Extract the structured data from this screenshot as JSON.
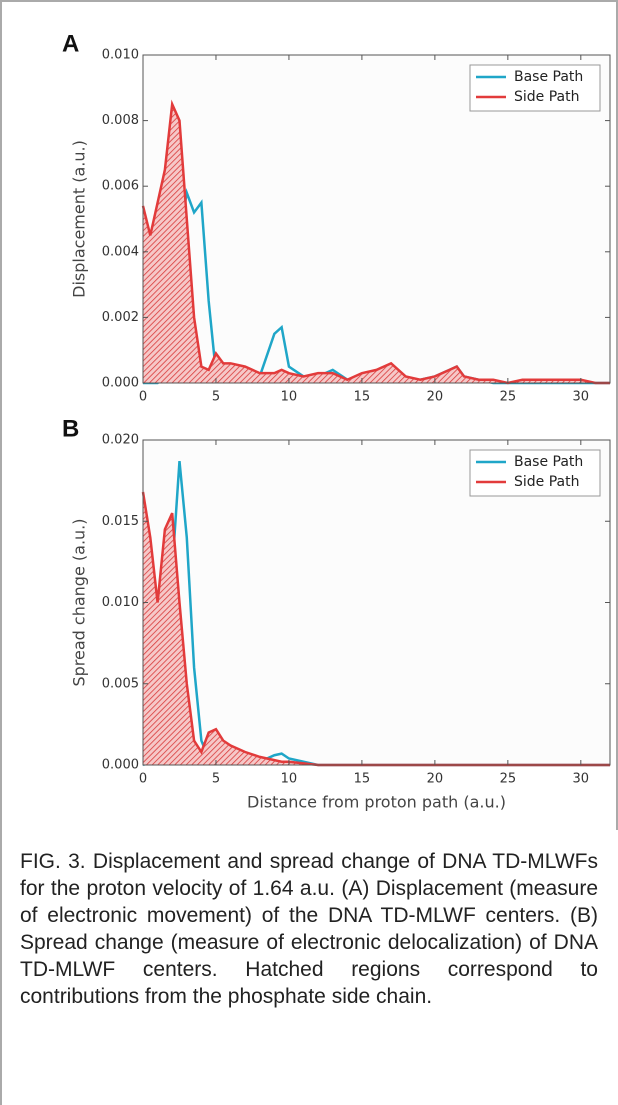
{
  "chart_data": [
    {
      "type": "line",
      "panel_label": "A",
      "ylabel": "Displacement (a.u.)",
      "x": [
        0,
        0.5,
        1,
        1.5,
        2,
        2.5,
        3,
        3.5,
        4,
        4.5,
        5,
        5.5,
        6,
        7,
        8,
        9,
        9.5,
        10,
        11,
        12,
        13,
        14,
        15,
        16,
        17,
        18,
        19,
        20,
        21,
        21.5,
        22,
        23,
        24,
        25,
        26,
        27,
        28,
        29,
        30,
        31,
        32
      ],
      "series": [
        {
          "name": "Base Path",
          "color": "#1fa6c8",
          "values": [
            0,
            0,
            0,
            0.0002,
            0.0015,
            0.0045,
            0.0058,
            0.0052,
            0.0055,
            0.0025,
            0.0003,
            0.0001,
            0.0001,
            0.0001,
            0.0002,
            0.0015,
            0.0017,
            0.0005,
            0.0002,
            0.0002,
            0.0004,
            0.0001,
            0.0002,
            0.0003,
            0.0003,
            0.0001,
            0.0001,
            0.0002,
            0.0004,
            0.0005,
            0.0002,
            0.0001,
            0,
            0,
            0,
            0,
            0,
            0,
            0,
            0,
            0
          ]
        },
        {
          "name": "Side Path",
          "color": "#e23b3b",
          "hatch": true,
          "values": [
            0.0054,
            0.0045,
            0.0055,
            0.0065,
            0.0085,
            0.008,
            0.005,
            0.002,
            0.0005,
            0.0004,
            0.0009,
            0.0006,
            0.0006,
            0.0005,
            0.0003,
            0.0003,
            0.0004,
            0.0003,
            0.0002,
            0.0003,
            0.0003,
            0.0001,
            0.0003,
            0.0004,
            0.0006,
            0.0002,
            0.0001,
            0.0002,
            0.0004,
            0.0005,
            0.0002,
            0.0001,
            0.0001,
            0,
            0.0001,
            0.0001,
            0.0001,
            0.0001,
            0.0001,
            0,
            0
          ]
        }
      ],
      "xlim": [
        0,
        32
      ],
      "xticks": [
        0,
        5,
        10,
        15,
        20,
        25,
        30
      ],
      "ylim": [
        0,
        0.01
      ],
      "yticks": [
        {
          "value": 0,
          "label": "0.000"
        },
        {
          "value": 0.002,
          "label": "0.002"
        },
        {
          "value": 0.004,
          "label": "0.004"
        },
        {
          "value": 0.006,
          "label": "0.006"
        },
        {
          "value": 0.008,
          "label": "0.008"
        },
        {
          "value": 0.01,
          "label": "0.010"
        }
      ],
      "legend": "upper right"
    },
    {
      "type": "line",
      "panel_label": "B",
      "ylabel": "Spread change (a.u.)",
      "xlabel": "Distance from proton path (a.u.)",
      "x": [
        0,
        0.5,
        1,
        1.5,
        2,
        2.5,
        3,
        3.5,
        4,
        4.5,
        5,
        5.5,
        6,
        7,
        8,
        9,
        9.5,
        10,
        11,
        12,
        13,
        14,
        15,
        16,
        17,
        18,
        19,
        20,
        21,
        21.5,
        22,
        23,
        24,
        25,
        26,
        27,
        28,
        29,
        30,
        31,
        32
      ],
      "series": [
        {
          "name": "Base Path",
          "color": "#1fa6c8",
          "values": [
            0,
            0.0002,
            0.0005,
            0.002,
            0.012,
            0.0187,
            0.014,
            0.006,
            0.0015,
            0.0004,
            0.0002,
            0.0001,
            0.0001,
            0.0001,
            0.0002,
            0.0006,
            0.0007,
            0.0004,
            0.0002,
            0,
            0,
            0,
            0,
            0,
            0,
            0,
            0,
            0,
            0,
            0,
            0,
            0,
            0,
            0,
            0,
            0,
            0,
            0,
            0,
            0,
            0
          ]
        },
        {
          "name": "Side Path",
          "color": "#e23b3b",
          "hatch": true,
          "values": [
            0.0168,
            0.014,
            0.01,
            0.0145,
            0.0155,
            0.01,
            0.005,
            0.0015,
            0.0008,
            0.002,
            0.0022,
            0.0015,
            0.0012,
            0.0008,
            0.0005,
            0.0003,
            0.0002,
            0.0002,
            0.0001,
            0,
            0,
            0,
            0,
            0,
            0,
            0,
            0,
            0,
            0,
            0,
            0,
            0,
            0,
            0,
            0,
            0,
            0,
            0,
            0,
            0,
            0
          ]
        }
      ],
      "xlim": [
        0,
        32
      ],
      "xticks": [
        0,
        5,
        10,
        15,
        20,
        25,
        30
      ],
      "ylim": [
        0,
        0.02
      ],
      "yticks": [
        {
          "value": 0,
          "label": "0.000"
        },
        {
          "value": 0.005,
          "label": "0.005"
        },
        {
          "value": 0.01,
          "label": "0.010"
        },
        {
          "value": 0.015,
          "label": "0.015"
        },
        {
          "value": 0.02,
          "label": "0.020"
        }
      ],
      "legend": "upper right"
    }
  ],
  "caption": "FIG. 3. Displacement and spread change of DNA TD-MLWFs for the proton velocity of 1.64 a.u. (A) Displacement (measure of electronic movement) of the DNA TD-MLWF centers. (B) Spread change (measure of electronic delocalization) of DNA TD-MLWF centers. Hatched regions correspond to contributions from the phosphate side chain."
}
